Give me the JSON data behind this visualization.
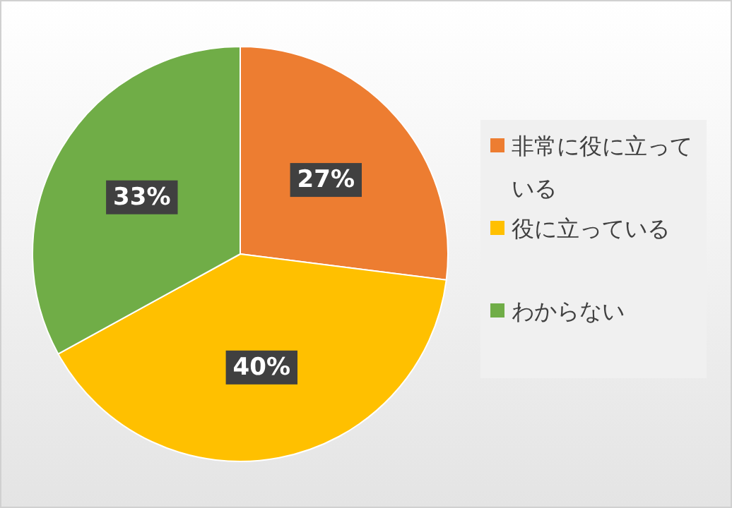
{
  "chart_data": {
    "type": "pie",
    "categories": [
      "非常に役に立っている",
      "役に立っている",
      "わからない"
    ],
    "values": [
      27,
      40,
      33
    ],
    "colors": [
      "#ed7d31",
      "#ffc000",
      "#70ad47"
    ],
    "value_labels": [
      "27%",
      "40%",
      "33%"
    ],
    "legend": "right"
  }
}
